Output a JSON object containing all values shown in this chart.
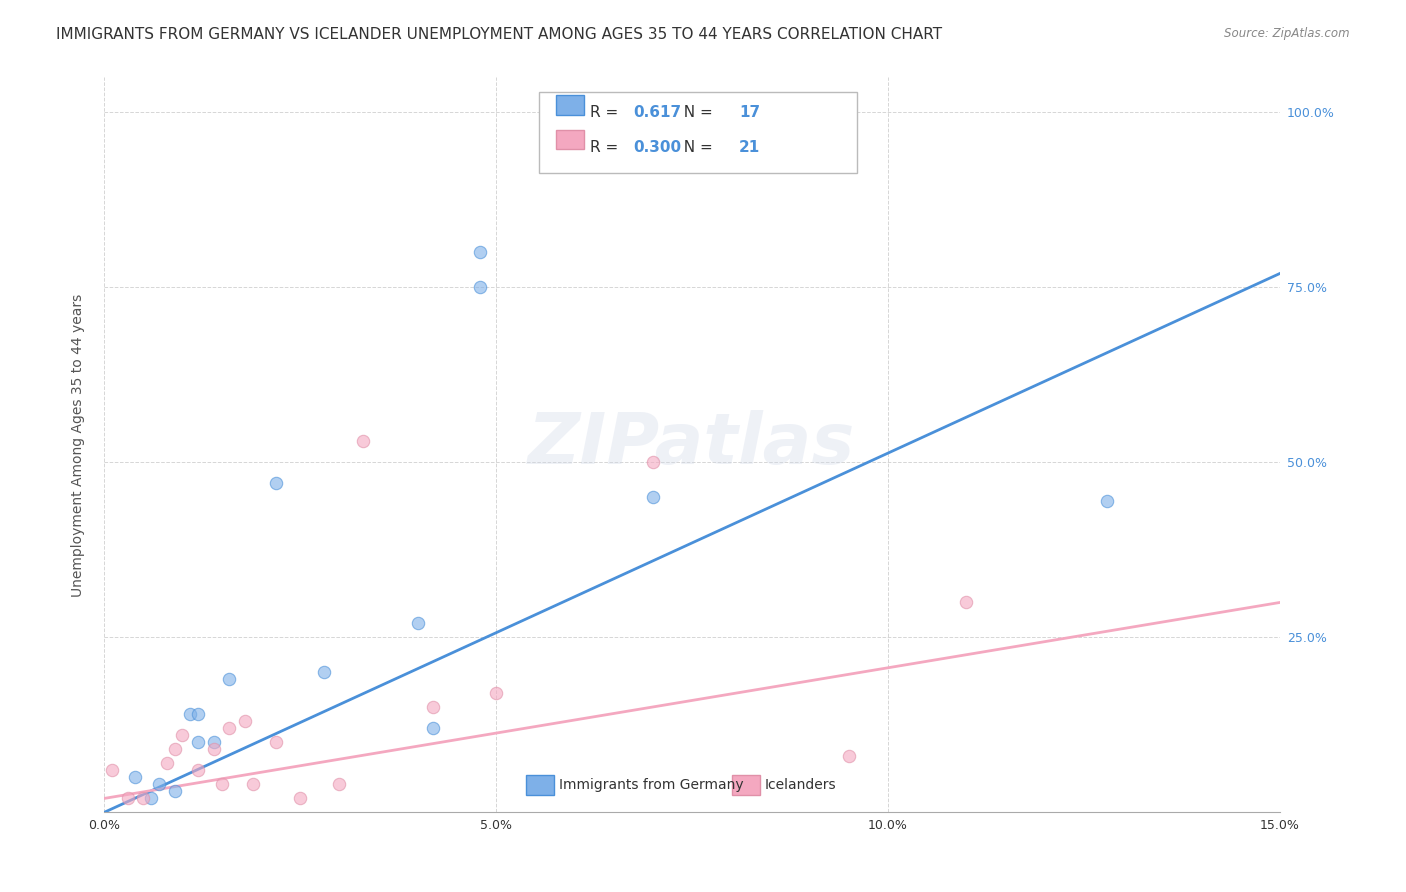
{
  "title": "IMMIGRANTS FROM GERMANY VS ICELANDER UNEMPLOYMENT AMONG AGES 35 TO 44 YEARS CORRELATION CHART",
  "source": "Source: ZipAtlas.com",
  "ylabel": "Unemployment Among Ages 35 to 44 years",
  "xlabel_bottom": "",
  "xlim": [
    0.0,
    0.15
  ],
  "ylim": [
    0.0,
    1.05
  ],
  "xtick_labels": [
    "0.0%",
    "5.0%",
    "10.0%",
    "15.0%"
  ],
  "xtick_values": [
    0.0,
    0.05,
    0.1,
    0.15
  ],
  "ytick_labels": [
    "25.0%",
    "50.0%",
    "75.0%",
    "100.0%"
  ],
  "ytick_values": [
    0.25,
    0.5,
    0.75,
    1.0
  ],
  "right_ytick_labels": [
    "25.0%",
    "50.0%",
    "75.0%",
    "100.0%"
  ],
  "right_ytick_values": [
    0.25,
    0.5,
    0.75,
    1.0
  ],
  "blue_R": "0.617",
  "blue_N": "17",
  "pink_R": "0.300",
  "pink_N": "21",
  "blue_color": "#7EB0E8",
  "pink_color": "#F4A8C0",
  "blue_line_color": "#4A90D9",
  "pink_line_color": "#F4A8C0",
  "watermark": "ZIPatlas",
  "blue_scatter_x": [
    0.004,
    0.006,
    0.007,
    0.009,
    0.011,
    0.012,
    0.012,
    0.014,
    0.016,
    0.022,
    0.028,
    0.04,
    0.042,
    0.048,
    0.048,
    0.07,
    0.128
  ],
  "blue_scatter_y": [
    0.05,
    0.02,
    0.04,
    0.03,
    0.14,
    0.14,
    0.1,
    0.1,
    0.19,
    0.47,
    0.2,
    0.27,
    0.12,
    0.8,
    0.75,
    0.45,
    0.445
  ],
  "pink_scatter_x": [
    0.001,
    0.003,
    0.005,
    0.008,
    0.009,
    0.01,
    0.012,
    0.014,
    0.015,
    0.016,
    0.018,
    0.019,
    0.022,
    0.025,
    0.03,
    0.033,
    0.042,
    0.05,
    0.07,
    0.095,
    0.11
  ],
  "pink_scatter_y": [
    0.06,
    0.02,
    0.02,
    0.07,
    0.09,
    0.11,
    0.06,
    0.09,
    0.04,
    0.12,
    0.13,
    0.04,
    0.1,
    0.02,
    0.04,
    0.53,
    0.15,
    0.17,
    0.5,
    0.08,
    0.3
  ],
  "blue_line_x0": 0.0,
  "blue_line_y0": 0.0,
  "blue_line_x1": 0.15,
  "blue_line_y1": 0.77,
  "pink_line_x0": 0.0,
  "pink_line_y0": 0.02,
  "pink_line_x1": 0.15,
  "pink_line_y1": 0.3,
  "legend_labels": [
    "Immigrants from Germany",
    "Icelanders"
  ],
  "background_color": "#FFFFFF",
  "grid_color": "#CCCCCC",
  "title_fontsize": 11,
  "axis_fontsize": 10,
  "tick_fontsize": 9,
  "scatter_size": 80,
  "scatter_alpha": 0.6,
  "line_width": 2.0
}
